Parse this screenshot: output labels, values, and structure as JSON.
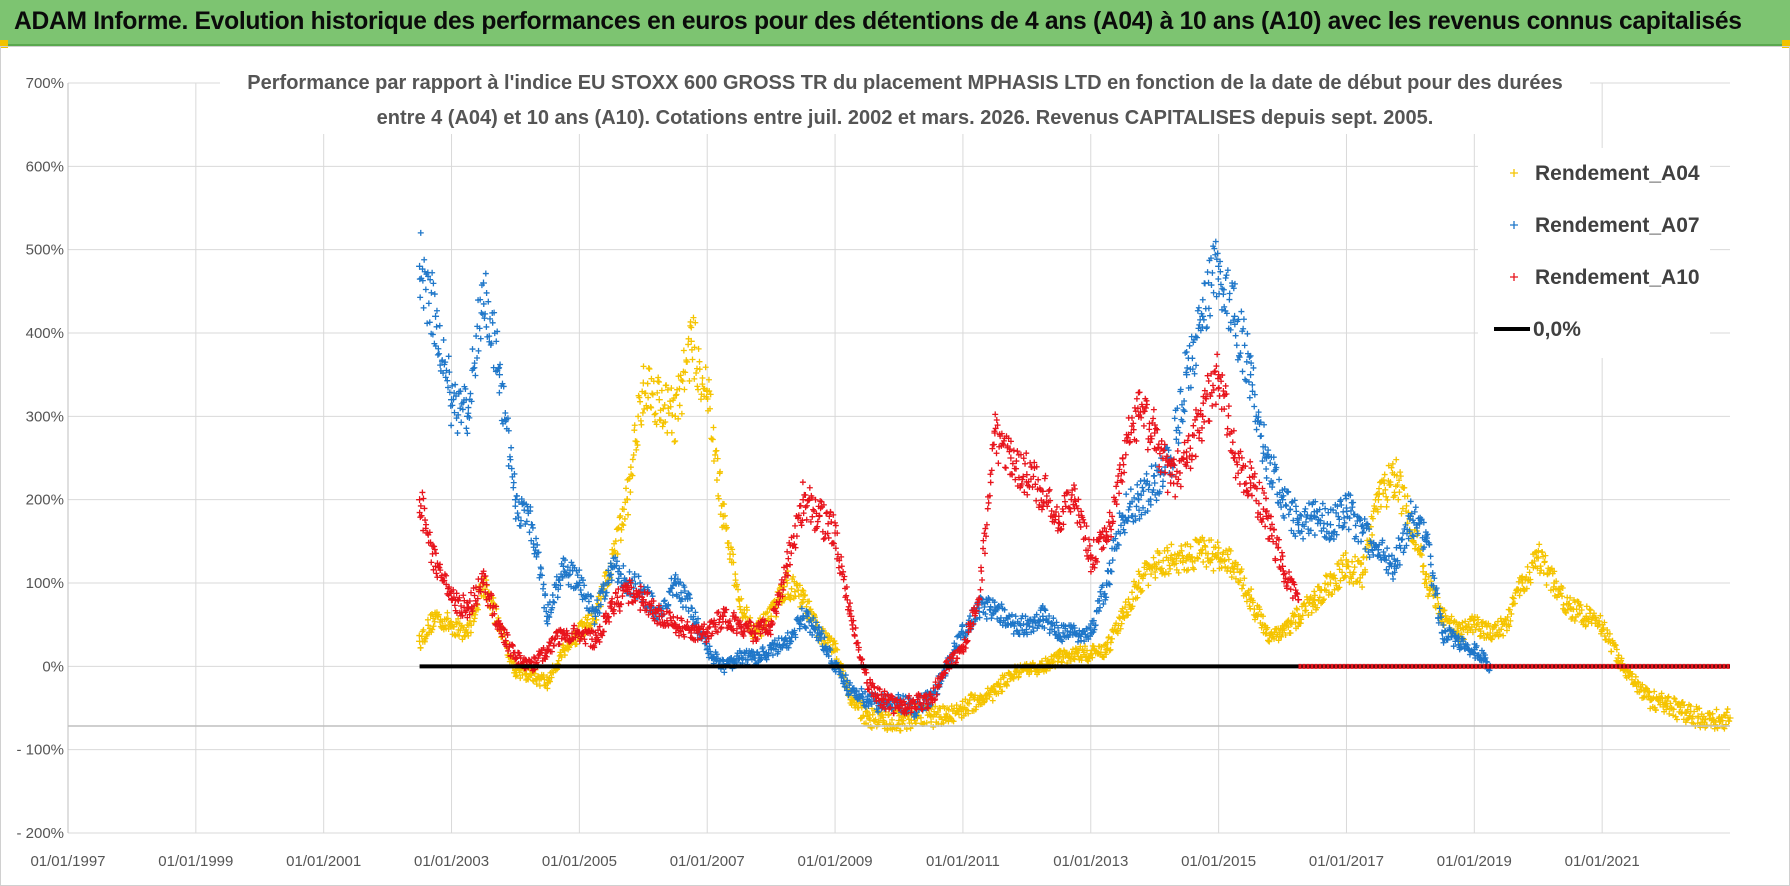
{
  "header": {
    "title": "ADAM Informe. Evolution historique des performances en euros pour des détentions de 4 ans (A04) à 10 ans (A10) avec les revenus connus capitalisés"
  },
  "colors": {
    "banner": "#7dc471",
    "a04": "#f5c400",
    "a07": "#1f77c9",
    "a10": "#e8141c",
    "zero": "#000000",
    "grid": "#d9d9d9"
  },
  "chart_data": {
    "type": "scatter",
    "title_line1": "Performance par rapport à l'indice EU STOXX 600 GROSS TR  du placement MPHASIS LTD en fonction de la date de début pour des durées",
    "title_line2": "entre 4 (A04) et 10 ans (A10).  Cotations entre juil. 2002 et mars. 2026.  Revenus CAPITALISES  depuis sept. 2005.",
    "x_tick_labels": [
      "01/01/1997",
      "01/01/1999",
      "01/01/2001",
      "01/01/2003",
      "01/01/2005",
      "01/01/2007",
      "01/01/2009",
      "01/01/2011",
      "01/01/2013",
      "01/01/2015",
      "01/01/2017",
      "01/01/2019",
      "01/01/2021"
    ],
    "x_range": [
      1997.0,
      2023.0
    ],
    "y_tick_labels": [
      "700%",
      "600%",
      "500%",
      "400%",
      "300%",
      "200%",
      "100%",
      "0%",
      "- 100%",
      "- 200%"
    ],
    "y_range": [
      -200,
      700
    ],
    "legend": [
      "Rendement_A04",
      "Rendement_A07",
      "Rendement_A10",
      "0,0%"
    ],
    "series": [
      {
        "name": "Rendement_A04",
        "x": [
          2002.5,
          2002.75,
          2003.0,
          2003.25,
          2003.5,
          2003.75,
          2004.0,
          2004.25,
          2004.5,
          2004.75,
          2005.0,
          2005.25,
          2005.5,
          2005.75,
          2006.0,
          2006.25,
          2006.5,
          2006.75,
          2007.0,
          2007.25,
          2007.5,
          2007.75,
          2008.0,
          2008.25,
          2008.5,
          2008.75,
          2009.0,
          2009.25,
          2009.5,
          2009.75,
          2010.0,
          2010.25,
          2010.5,
          2010.75,
          2011.0,
          2011.25,
          2011.5,
          2011.75,
          2012.0,
          2012.25,
          2012.5,
          2012.75,
          2013.0,
          2013.25,
          2013.5,
          2013.75,
          2014.0,
          2014.25,
          2014.5,
          2014.75,
          2015.0,
          2015.25,
          2015.5,
          2015.75,
          2016.0,
          2016.25,
          2016.5,
          2016.75,
          2017.0,
          2017.25,
          2017.5,
          2017.75,
          2018.0,
          2018.25,
          2018.5,
          2018.75,
          2019.0,
          2019.25,
          2019.5,
          2019.75,
          2020.0,
          2020.25,
          2020.5,
          2020.75,
          2021.0,
          2021.25,
          2021.5,
          2021.75,
          2022.0,
          2022.25,
          2022.5,
          2022.75,
          2023.0
        ],
        "values": [
          30,
          60,
          50,
          40,
          100,
          50,
          -5,
          -10,
          -20,
          20,
          40,
          60,
          120,
          200,
          340,
          320,
          300,
          390,
          330,
          180,
          80,
          40,
          60,
          100,
          80,
          40,
          20,
          -40,
          -60,
          -65,
          -65,
          -60,
          -60,
          -60,
          -50,
          -40,
          -30,
          -10,
          -5,
          0,
          10,
          15,
          15,
          20,
          60,
          100,
          120,
          130,
          130,
          140,
          130,
          120,
          80,
          40,
          40,
          60,
          80,
          100,
          120,
          110,
          200,
          230,
          180,
          100,
          60,
          40,
          50,
          40,
          50,
          100,
          130,
          100,
          70,
          60,
          50,
          10,
          -20,
          -40,
          -45,
          -55,
          -60,
          -65,
          -62
        ]
      },
      {
        "name": "Rendement_A07",
        "x": [
          2002.5,
          2002.75,
          2003.0,
          2003.25,
          2003.5,
          2003.75,
          2004.0,
          2004.25,
          2004.5,
          2004.75,
          2005.0,
          2005.25,
          2005.5,
          2005.75,
          2006.0,
          2006.25,
          2006.5,
          2006.75,
          2007.0,
          2007.25,
          2007.5,
          2007.75,
          2008.0,
          2008.25,
          2008.5,
          2008.75,
          2009.0,
          2009.25,
          2009.5,
          2009.75,
          2010.0,
          2010.25,
          2010.5,
          2010.75,
          2011.0,
          2011.25,
          2011.5,
          2011.75,
          2012.0,
          2012.25,
          2012.5,
          2012.75,
          2013.0,
          2013.25,
          2013.5,
          2013.75,
          2014.0,
          2014.25,
          2014.5,
          2014.75,
          2015.0,
          2015.25,
          2015.5,
          2015.75,
          2016.0,
          2016.25,
          2016.5,
          2016.75,
          2017.0,
          2017.25,
          2017.5,
          2017.75,
          2018.0,
          2018.25,
          2018.5,
          2018.75,
          2019.0,
          2019.25
        ],
        "values": [
          480,
          420,
          320,
          300,
          460,
          350,
          200,
          170,
          60,
          120,
          100,
          60,
          120,
          100,
          90,
          60,
          100,
          70,
          20,
          0,
          10,
          10,
          20,
          30,
          60,
          40,
          0,
          -30,
          -40,
          -45,
          -45,
          -50,
          -40,
          0,
          40,
          70,
          70,
          50,
          50,
          60,
          40,
          40,
          40,
          100,
          180,
          200,
          220,
          250,
          350,
          420,
          480,
          420,
          350,
          250,
          200,
          170,
          180,
          170,
          190,
          160,
          140,
          120,
          180,
          150,
          40,
          30,
          20,
          0
        ]
      },
      {
        "name": "Rendement_A10",
        "x": [
          2002.5,
          2002.75,
          2003.0,
          2003.25,
          2003.5,
          2003.75,
          2004.0,
          2004.25,
          2004.5,
          2004.75,
          2005.0,
          2005.25,
          2005.5,
          2005.75,
          2006.0,
          2006.25,
          2006.5,
          2006.75,
          2007.0,
          2007.25,
          2007.5,
          2007.75,
          2008.0,
          2008.25,
          2008.5,
          2008.75,
          2009.0,
          2009.25,
          2009.5,
          2009.75,
          2010.0,
          2010.25,
          2010.5,
          2010.75,
          2011.0,
          2011.25,
          2011.5,
          2011.75,
          2012.0,
          2012.25,
          2012.5,
          2012.75,
          2013.0,
          2013.25,
          2013.5,
          2013.75,
          2014.0,
          2014.25,
          2014.5,
          2014.75,
          2015.0,
          2015.25,
          2015.5,
          2015.75,
          2016.0,
          2016.25
        ],
        "values": [
          200,
          120,
          80,
          70,
          100,
          50,
          10,
          0,
          20,
          40,
          40,
          30,
          70,
          90,
          80,
          60,
          50,
          40,
          40,
          60,
          50,
          40,
          50,
          120,
          200,
          180,
          160,
          60,
          -20,
          -40,
          -50,
          -45,
          -40,
          0,
          20,
          80,
          280,
          250,
          230,
          210,
          180,
          200,
          130,
          150,
          250,
          300,
          280,
          220,
          250,
          300,
          350,
          250,
          220,
          180,
          120,
          80
        ]
      },
      {
        "name": "0,0%",
        "x": [
          2002.5,
          2023.0
        ],
        "values": [
          0,
          0
        ]
      }
    ]
  }
}
